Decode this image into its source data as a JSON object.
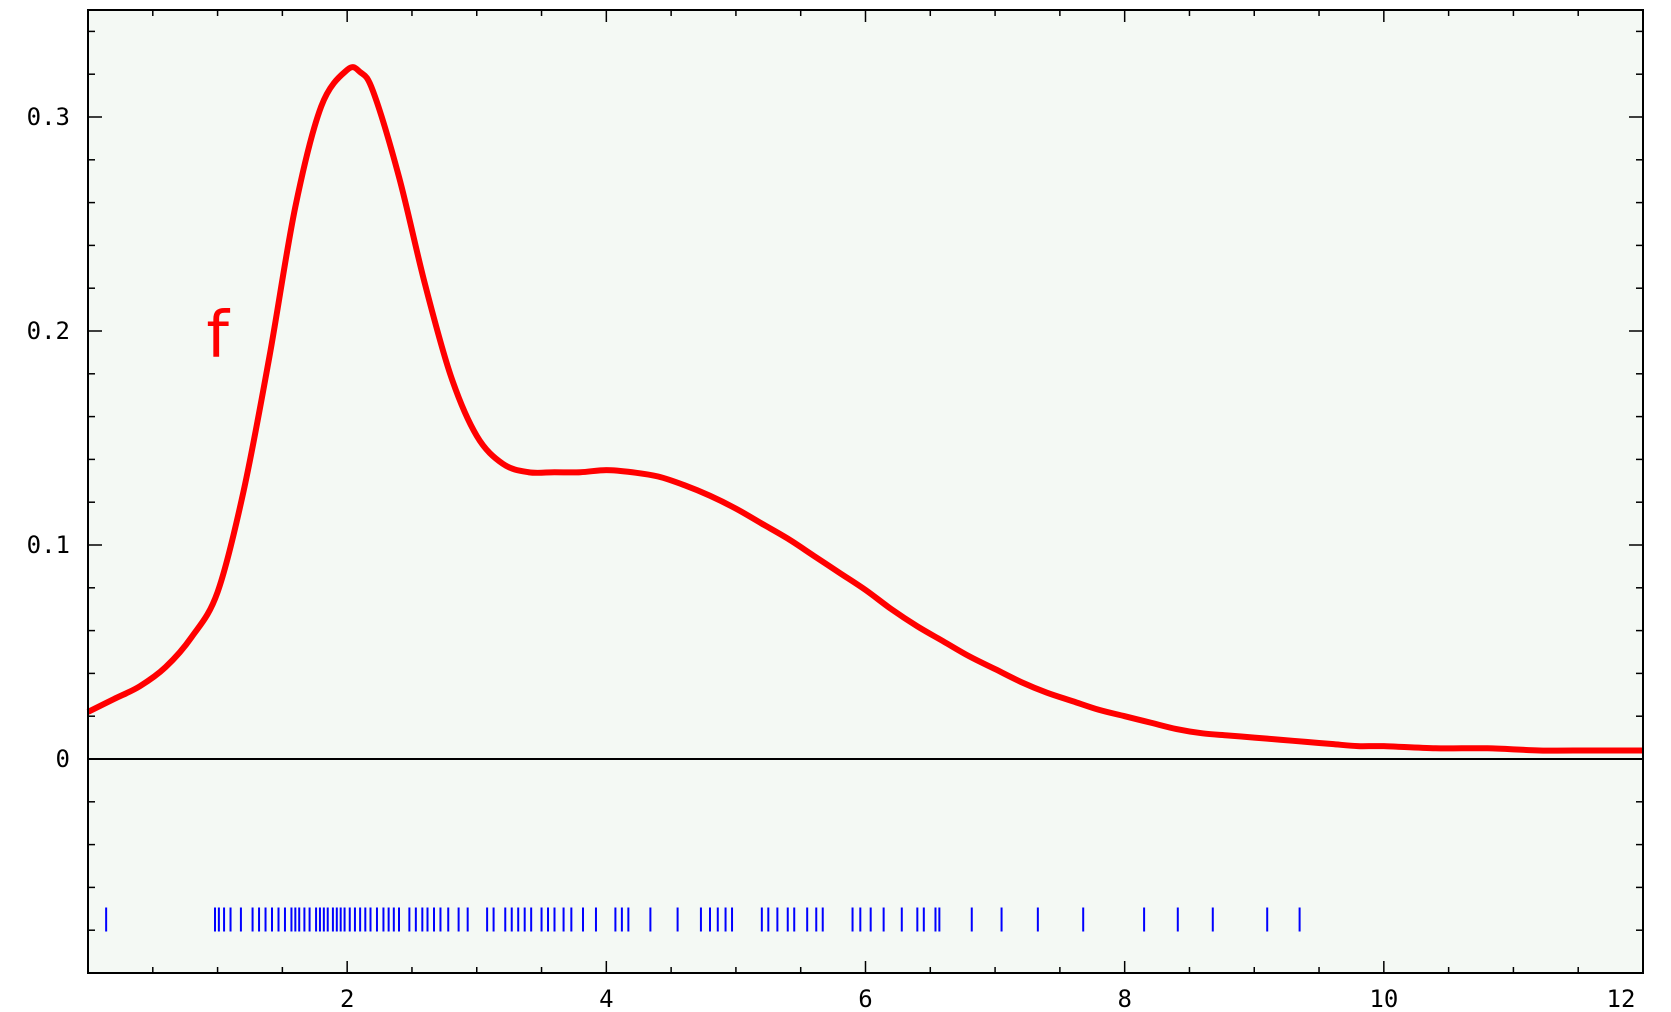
{
  "chart_data": {
    "type": "line",
    "title": "",
    "xlabel": "",
    "ylabel": "",
    "xlim": [
      0,
      12
    ],
    "ylim": [
      -0.1,
      0.35
    ],
    "grid": false,
    "legend": "none",
    "x_ticks": [
      {
        "value": 2,
        "label": "2"
      },
      {
        "value": 4,
        "label": "4"
      },
      {
        "value": 6,
        "label": "6"
      },
      {
        "value": 8,
        "label": "8"
      },
      {
        "value": 10,
        "label": "10"
      },
      {
        "value": 12,
        "label": "12"
      }
    ],
    "y_ticks": [
      {
        "value": 0,
        "label": "0"
      },
      {
        "value": 0.1,
        "label": "0.1"
      },
      {
        "value": 0.2,
        "label": "0.2"
      },
      {
        "value": 0.3,
        "label": "0.3"
      }
    ],
    "series": [
      {
        "name": "f",
        "color": "#ff0000",
        "x": [
          0,
          0.2,
          0.4,
          0.6,
          0.8,
          1.0,
          1.2,
          1.4,
          1.6,
          1.8,
          2.0,
          2.1,
          2.2,
          2.4,
          2.6,
          2.8,
          3.0,
          3.2,
          3.4,
          3.6,
          3.8,
          4.0,
          4.2,
          4.4,
          4.6,
          4.8,
          5.0,
          5.2,
          5.4,
          5.6,
          5.8,
          6.0,
          6.2,
          6.4,
          6.6,
          6.8,
          7.0,
          7.2,
          7.4,
          7.6,
          7.8,
          8.0,
          8.2,
          8.4,
          8.6,
          8.8,
          9.0,
          9.2,
          9.4,
          9.6,
          9.8,
          10.0,
          10.4,
          10.8,
          11.2,
          11.6,
          12.0
        ],
        "y": [
          0.022,
          0.028,
          0.034,
          0.043,
          0.057,
          0.078,
          0.125,
          0.188,
          0.258,
          0.305,
          0.322,
          0.321,
          0.312,
          0.272,
          0.222,
          0.179,
          0.151,
          0.138,
          0.134,
          0.134,
          0.134,
          0.135,
          0.134,
          0.132,
          0.128,
          0.123,
          0.117,
          0.11,
          0.103,
          0.095,
          0.087,
          0.079,
          0.07,
          0.062,
          0.055,
          0.048,
          0.042,
          0.036,
          0.031,
          0.027,
          0.023,
          0.02,
          0.017,
          0.014,
          0.012,
          0.011,
          0.01,
          0.009,
          0.008,
          0.007,
          0.006,
          0.006,
          0.005,
          0.005,
          0.004,
          0.004,
          0.004
        ]
      }
    ],
    "annotations": [
      {
        "text": "f",
        "x": 1.0,
        "y": 0.2,
        "color": "#ff0000"
      }
    ],
    "rug": {
      "color": "#0000ff",
      "y": -0.075,
      "values": [
        0.14,
        0.98,
        1.01,
        1.05,
        1.1,
        1.18,
        1.27,
        1.32,
        1.37,
        1.42,
        1.47,
        1.52,
        1.57,
        1.6,
        1.63,
        1.67,
        1.71,
        1.76,
        1.79,
        1.82,
        1.85,
        1.89,
        1.92,
        1.95,
        1.98,
        2.02,
        2.06,
        2.1,
        2.14,
        2.18,
        2.23,
        2.28,
        2.32,
        2.36,
        2.4,
        2.48,
        2.53,
        2.58,
        2.62,
        2.67,
        2.72,
        2.78,
        2.86,
        2.93,
        3.08,
        3.13,
        3.22,
        3.27,
        3.32,
        3.37,
        3.42,
        3.5,
        3.55,
        3.6,
        3.67,
        3.73,
        3.82,
        3.92,
        4.07,
        4.12,
        4.17,
        4.34,
        4.55,
        4.73,
        4.8,
        4.86,
        4.92,
        4.97,
        5.2,
        5.25,
        5.32,
        5.4,
        5.45,
        5.55,
        5.62,
        5.67,
        5.9,
        5.96,
        6.04,
        6.14,
        6.28,
        6.4,
        6.45,
        6.54,
        6.57,
        6.82,
        7.05,
        7.33,
        7.68,
        8.15,
        8.41,
        8.68,
        9.1,
        9.35
      ]
    }
  }
}
